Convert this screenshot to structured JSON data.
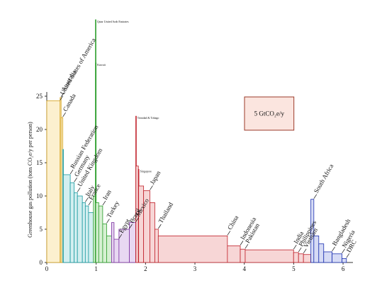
{
  "chart_data": {
    "type": "variwide",
    "y_label": "Greenhouse gas pollution (tons CO₂e/y per person)",
    "xlim": [
      0,
      6.2
    ],
    "xticks": [
      0,
      1,
      2,
      3,
      4,
      5,
      6
    ],
    "ylim": [
      0,
      25
    ],
    "yticks": [
      0,
      5,
      10,
      15,
      20,
      25
    ],
    "scale_box": {
      "value": 5,
      "label": "5 GtCO₂e/y"
    },
    "groups": [
      {
        "color": "#d4a017",
        "fill": "#fcf0cf",
        "categories": [
          "United States of America",
          "Australia",
          "Canada"
        ],
        "widths": [
          0.27,
          0.02,
          0.035
        ],
        "values": [
          24.3,
          24.8,
          21.8
        ]
      },
      {
        "color": "#1a9aa0",
        "fill": "#d3eff0",
        "categories": [
          null,
          "Russian Federation",
          "Germany",
          "United Kingdom",
          null,
          "Italy",
          "France",
          null
        ],
        "widths": [
          0.01,
          0.14,
          0.08,
          0.065,
          0.1,
          0.06,
          0.065,
          0.1
        ],
        "values": [
          17,
          13.2,
          12,
          10.5,
          10,
          9,
          8.5,
          7.5
        ]
      },
      {
        "color": "#2a9d2a",
        "fill": "#d6f0d2",
        "categories": [
          null,
          "Qatar United Arab Emirates",
          "Kuwait",
          null,
          "Iran",
          "Turkey",
          null
        ],
        "widths": [
          0.04,
          0.003,
          0.004,
          0.06,
          0.08,
          0.08,
          0.1
        ],
        "values": [
          10,
          36.5,
          30,
          9,
          8.5,
          5.8,
          4
        ]
      },
      {
        "color": "#7b2fa0",
        "fill": "#e8d8f2",
        "categories": [
          null,
          "Egypt",
          "Brazil",
          "Mexico"
        ],
        "widths": [
          0.05,
          0.1,
          0.21,
          0.13
        ],
        "values": [
          6,
          3.5,
          5,
          6
        ]
      },
      {
        "color": "#c0202a",
        "fill": "#f7d6d6",
        "categories": [
          "Trinidad & Tobago",
          null,
          "Singapore",
          null,
          "Japan",
          null,
          "Thailand",
          "China",
          "Indonesia",
          "Pakistan",
          "India",
          "Philippines",
          "Vietnam",
          null
        ],
        "widths": [
          0.003,
          0.05,
          0.006,
          0.1,
          0.127,
          0.1,
          0.07,
          1.4,
          0.26,
          0.1,
          0.98,
          0.1,
          0.1,
          0.15
        ],
        "values": [
          22,
          14.5,
          14,
          11.5,
          10.8,
          9,
          5,
          4,
          2.5,
          2,
          1.9,
          1.5,
          1.3,
          1.2
        ]
      },
      {
        "color": "#1a2fb0",
        "fill": "#d6dbf5",
        "categories": [
          "South Africa",
          null,
          null,
          "Bangladesh",
          "Nigeria",
          "DRC"
        ],
        "widths": [
          0.06,
          0.1,
          0.1,
          0.17,
          0.2,
          0.09
        ],
        "values": [
          9.5,
          4,
          2.8,
          1.6,
          1.3,
          0.6
        ]
      }
    ]
  }
}
